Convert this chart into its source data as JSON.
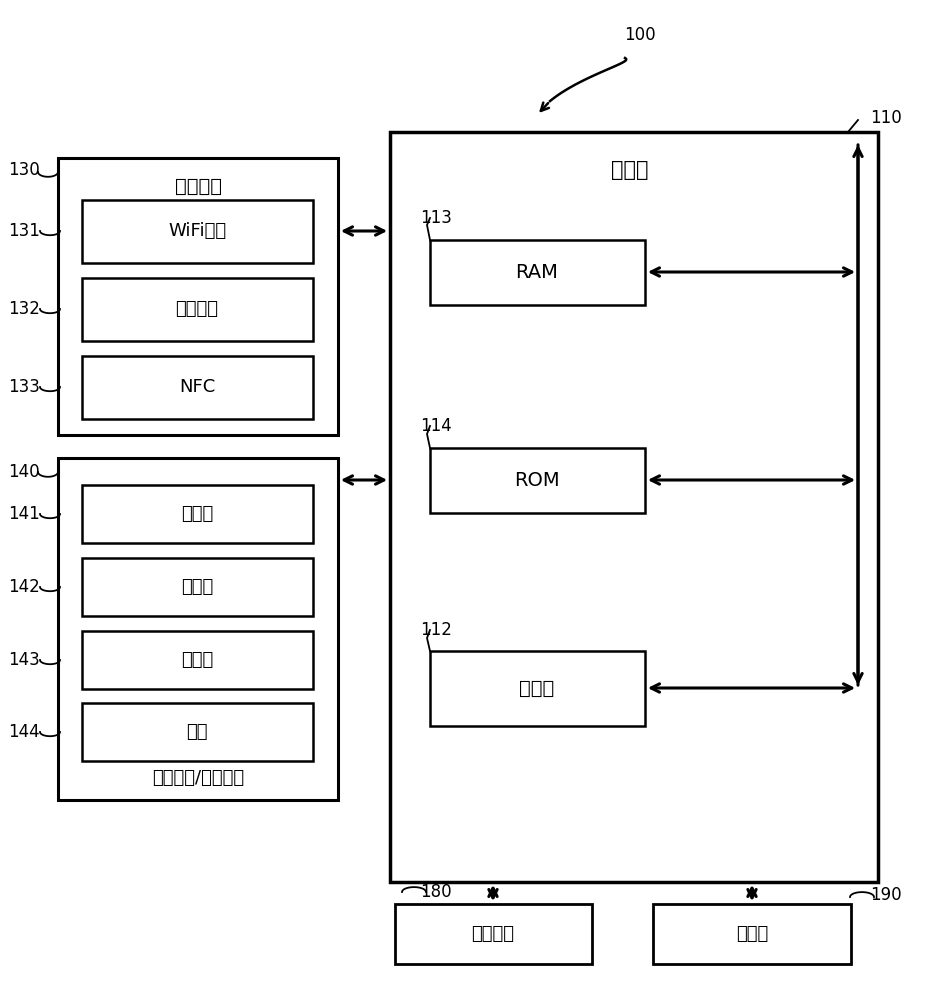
{
  "bg_color": "#ffffff",
  "line_color": "#000000",
  "box_fill": "#ffffff",
  "fig_width": 9.35,
  "fig_height": 10.0,
  "labels": {
    "100": "100",
    "110": "110",
    "130": "130",
    "131": "131",
    "132": "132",
    "133": "133",
    "140": "140",
    "141": "141",
    "142": "142",
    "143": "143",
    "144": "144",
    "112": "112",
    "113": "113",
    "114": "114",
    "180": "180",
    "190": "190",
    "comm_iface": "通信接口",
    "controller": "控制器",
    "wifi": "WiFi芯片",
    "bluetooth": "蓝牙模块",
    "nfc": "NFC",
    "user_iface": "用户输入/输出接口",
    "mic": "麦克风",
    "touch": "触摸板",
    "sensor": "传感器",
    "button": "按键",
    "ram": "RAM",
    "rom": "ROM",
    "processor": "处理器",
    "power": "供电电源",
    "storage": "存储器"
  }
}
